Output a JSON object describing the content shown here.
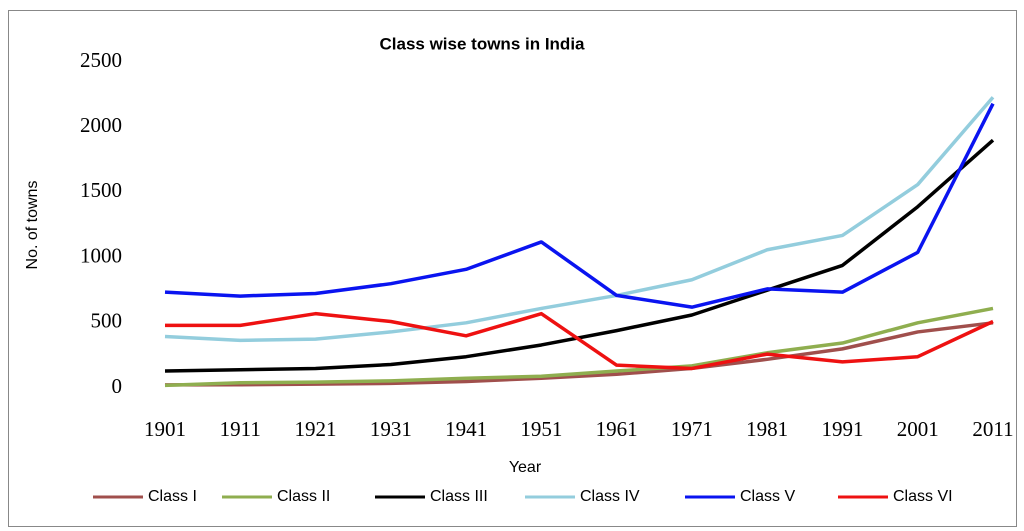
{
  "chart_data": {
    "type": "line",
    "title": "Class wise towns in India",
    "x_label": "Year",
    "y_label": "No. of towns",
    "categories": [
      "1901",
      "1911",
      "1921",
      "1931",
      "1941",
      "1951",
      "1961",
      "1971",
      "1981",
      "1991",
      "2001",
      "2011"
    ],
    "ylim": [
      0,
      2500
    ],
    "yticks": [
      0,
      500,
      1000,
      1500,
      2000,
      2500
    ],
    "grid": false,
    "legend": "bottom",
    "series": [
      {
        "name": "Class I",
        "color": "#a04f4c",
        "values": [
          24,
          25,
          30,
          35,
          50,
          75,
          105,
          150,
          220,
          300,
          430,
          500
        ]
      },
      {
        "name": "Class II",
        "color": "#8fae4f",
        "values": [
          20,
          40,
          45,
          55,
          75,
          90,
          130,
          170,
          270,
          345,
          500,
          610
        ]
      },
      {
        "name": "Class III",
        "color": "#000000",
        "values": [
          130,
          140,
          150,
          180,
          240,
          330,
          440,
          560,
          750,
          940,
          1390,
          1900
        ]
      },
      {
        "name": "Class IV",
        "color": "#93cddd",
        "values": [
          395,
          365,
          375,
          430,
          500,
          610,
          710,
          830,
          1060,
          1170,
          1560,
          2230
        ]
      },
      {
        "name": "Class V",
        "color": "#0a14f0",
        "values": [
          735,
          705,
          725,
          800,
          910,
          1120,
          710,
          620,
          760,
          735,
          1040,
          2180
        ]
      },
      {
        "name": "Class VI",
        "color": "#ee1111",
        "values": [
          480,
          480,
          570,
          510,
          400,
          570,
          175,
          150,
          260,
          200,
          240,
          510
        ]
      }
    ]
  }
}
